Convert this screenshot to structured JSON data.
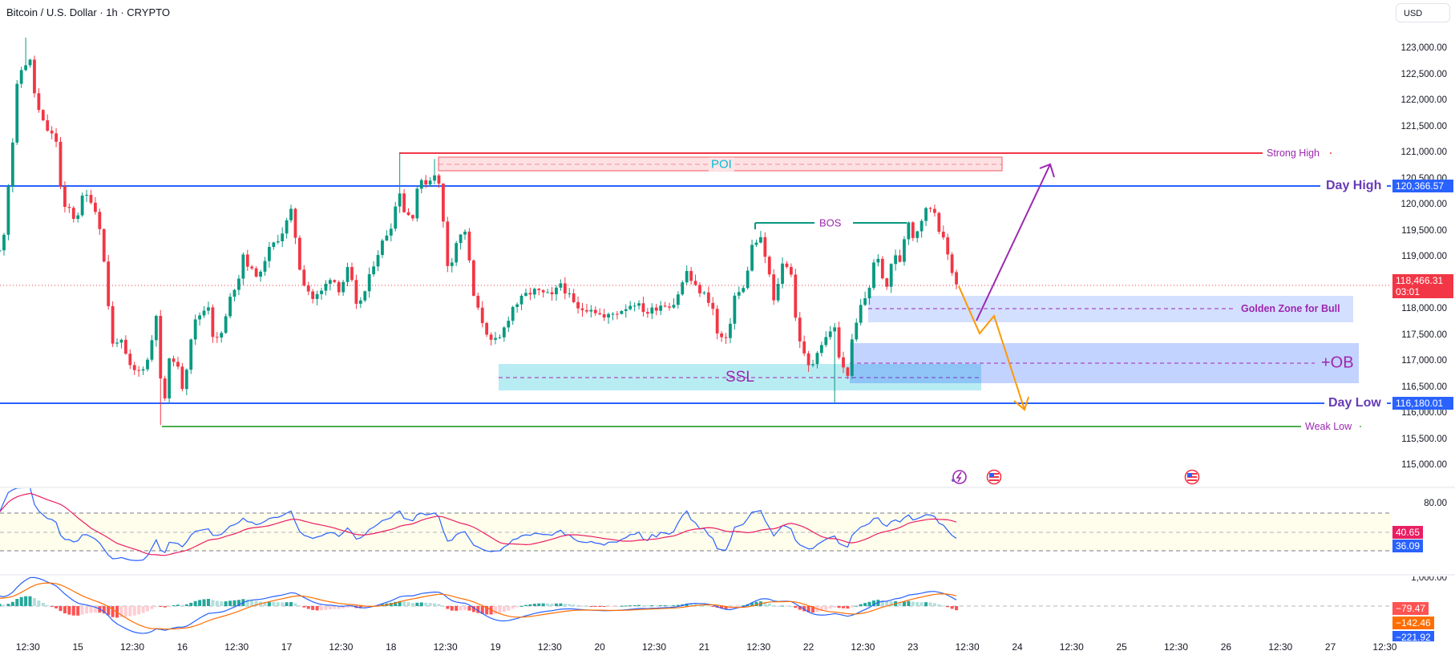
{
  "header": {
    "title": "Bitcoin / U.S. Dollar · 1h · CRYPTO",
    "currency_button": "USD"
  },
  "annotations": {
    "poi": "POI",
    "bos": "BOS",
    "ssl": "SSL",
    "ob": "+OB",
    "golden_zone": "Golden Zone for Bull",
    "strong_high": "Strong High",
    "day_high": "Day High",
    "day_low": "Day Low",
    "weak_low": "Weak Low"
  },
  "price_tags": {
    "day_high": "120,366.57",
    "last_price": "118,466.31",
    "countdown": "03:01",
    "day_low": "116,180.01"
  },
  "colors": {
    "up": "#089981",
    "down": "#f23645",
    "day_level": "#2962ff",
    "strong_high": "#f23645",
    "weak_low": "#4caf50",
    "label": "#9c27b0"
  },
  "chart_data": {
    "type": "candlestick",
    "title": "Bitcoin / U.S. Dollar · 1h · CRYPTO",
    "x_unit": "hours since Jul 14 00:00",
    "price_axis": {
      "labels": [
        "123,000.00",
        "122,500.00",
        "122,000.00",
        "121,500.00",
        "121,000.00",
        "120,500.00",
        "120,000.00",
        "119,500.00",
        "119,000.00",
        "118,000.00",
        "117,500.00",
        "117,000.00",
        "116,500.00",
        "116,000.00",
        "115,500.00",
        "115,000.00"
      ],
      "range": [
        114700,
        123900
      ]
    },
    "time_axis": [
      {
        "label": "12:30",
        "h": 12.5
      },
      {
        "label": "15",
        "h": 24
      },
      {
        "label": "12:30",
        "h": 36.5
      },
      {
        "label": "16",
        "h": 48
      },
      {
        "label": "12:30",
        "h": 60.5
      },
      {
        "label": "17",
        "h": 72
      },
      {
        "label": "12:30",
        "h": 84.5
      },
      {
        "label": "18",
        "h": 96
      },
      {
        "label": "12:30",
        "h": 108.5
      },
      {
        "label": "19",
        "h": 120
      },
      {
        "label": "12:30",
        "h": 132.5
      },
      {
        "label": "20",
        "h": 144
      },
      {
        "label": "12:30",
        "h": 156.5
      },
      {
        "label": "21",
        "h": 168
      },
      {
        "label": "12:30",
        "h": 180.5
      },
      {
        "label": "22",
        "h": 192
      },
      {
        "label": "12:30",
        "h": 204.5
      },
      {
        "label": "23",
        "h": 216
      },
      {
        "label": "12:30",
        "h": 228.5
      },
      {
        "label": "24",
        "h": 240
      },
      {
        "label": "12:30",
        "h": 252.5
      },
      {
        "label": "25",
        "h": 264
      },
      {
        "label": "12:30",
        "h": 276.5
      },
      {
        "label": "26",
        "h": 288
      },
      {
        "label": "12:30",
        "h": 300.5
      },
      {
        "label": "27",
        "h": 312
      },
      {
        "label": "12:30",
        "h": 324.5
      }
    ],
    "close_path": [
      [
        6.4,
        119100
      ],
      [
        7.3,
        119660
      ],
      [
        8.4,
        120800
      ],
      [
        9.3,
        121415
      ],
      [
        10.2,
        122490
      ],
      [
        12.3,
        122740
      ],
      [
        13.3,
        122740
      ],
      [
        14.2,
        121970
      ],
      [
        16.3,
        121500
      ],
      [
        19.2,
        121200
      ],
      [
        20.4,
        119890
      ],
      [
        22.3,
        119920
      ],
      [
        23.4,
        119660
      ],
      [
        25.3,
        120200
      ],
      [
        27.3,
        120080
      ],
      [
        29.3,
        119500
      ],
      [
        30.5,
        118460
      ],
      [
        32.2,
        117150
      ],
      [
        33.3,
        117500
      ],
      [
        35.2,
        117050
      ],
      [
        36.3,
        116800
      ],
      [
        38.2,
        116800
      ],
      [
        40.3,
        117050
      ],
      [
        42.3,
        118080
      ],
      [
        43.3,
        115970
      ],
      [
        44.2,
        116380
      ],
      [
        45.3,
        117200
      ],
      [
        47.4,
        116740
      ],
      [
        48.2,
        116430
      ],
      [
        50.2,
        117570
      ],
      [
        51.3,
        117820
      ],
      [
        54.1,
        118080
      ],
      [
        55.3,
        117310
      ],
      [
        57.3,
        117570
      ],
      [
        59.1,
        118230
      ],
      [
        61.2,
        118660
      ],
      [
        62.2,
        119150
      ],
      [
        63.3,
        118740
      ],
      [
        66.1,
        118640
      ],
      [
        67.2,
        119040
      ],
      [
        69.3,
        119270
      ],
      [
        71.1,
        119490
      ],
      [
        73.2,
        119890
      ],
      [
        74.2,
        119260
      ],
      [
        75.3,
        118610
      ],
      [
        78.1,
        118180
      ],
      [
        80.2,
        118340
      ],
      [
        82.2,
        118640
      ],
      [
        84.2,
        118350
      ],
      [
        86.3,
        118810
      ],
      [
        88,
        118030
      ],
      [
        90.1,
        118340
      ],
      [
        92.1,
        118900
      ],
      [
        94.2,
        119310
      ],
      [
        96.1,
        119620
      ],
      [
        97.9,
        120300
      ],
      [
        99.2,
        119800
      ],
      [
        101.1,
        119800
      ],
      [
        102.1,
        120380
      ],
      [
        104.9,
        120460
      ],
      [
        106.2,
        120640
      ],
      [
        107.2,
        120300
      ],
      [
        108.3,
        119410
      ],
      [
        109.2,
        118690
      ],
      [
        111.1,
        119310
      ],
      [
        113.1,
        119510
      ],
      [
        114.1,
        118810
      ],
      [
        115.1,
        118180
      ],
      [
        116.2,
        117920
      ],
      [
        119,
        117350
      ],
      [
        120.9,
        117400
      ],
      [
        124,
        118030
      ],
      [
        127,
        118260
      ],
      [
        128.9,
        118340
      ],
      [
        133.1,
        118230
      ],
      [
        135,
        118490
      ],
      [
        138.9,
        117970
      ],
      [
        141.9,
        118030
      ],
      [
        145,
        117820
      ],
      [
        148.8,
        117970
      ],
      [
        151.9,
        118120
      ],
      [
        154.9,
        117920
      ],
      [
        158,
        118080
      ],
      [
        160.9,
        118080
      ],
      [
        163,
        118490
      ],
      [
        163.9,
        118740
      ],
      [
        165.6,
        118430
      ],
      [
        167.9,
        118280
      ],
      [
        169.8,
        118080
      ],
      [
        171,
        117510
      ],
      [
        173.3,
        117350
      ],
      [
        174.8,
        118230
      ],
      [
        177.1,
        118380
      ],
      [
        179,
        119200
      ],
      [
        180.9,
        119350
      ],
      [
        182.8,
        118740
      ],
      [
        184,
        118120
      ],
      [
        185.9,
        118850
      ],
      [
        187.8,
        118850
      ],
      [
        189,
        117820
      ],
      [
        190.5,
        117200
      ],
      [
        192.4,
        116800
      ],
      [
        193.9,
        117200
      ],
      [
        195.9,
        117420
      ],
      [
        197.8,
        117720
      ],
      [
        198.9,
        117100
      ],
      [
        200.8,
        116650
      ],
      [
        202,
        117350
      ],
      [
        203.9,
        118030
      ],
      [
        205.8,
        118340
      ],
      [
        207.7,
        119150
      ],
      [
        209.6,
        118230
      ],
      [
        211.5,
        119110
      ],
      [
        212.7,
        118800
      ],
      [
        213.8,
        119260
      ],
      [
        214.8,
        119770
      ],
      [
        216.1,
        119350
      ],
      [
        218.8,
        119880
      ],
      [
        220.7,
        119970
      ],
      [
        221.9,
        119570
      ],
      [
        223.8,
        119110
      ],
      [
        224.9,
        118690
      ],
      [
        225.7,
        119000
      ],
      [
        226.7,
        118466.31
      ]
    ],
    "wick_extremes": [
      [
        12,
        123200,
        null
      ],
      [
        43,
        null,
        115770
      ],
      [
        98,
        121000,
        null
      ],
      [
        106,
        120870,
        null
      ],
      [
        198,
        null,
        116180
      ]
    ],
    "levels": {
      "strong_high": 121000,
      "day_high": 120366.57,
      "last": 118466.31,
      "day_low": 116180.01,
      "weak_low": 115770
    },
    "zones": {
      "poi": [
        120720,
        120980
      ],
      "golden_zone": [
        117770,
        118280
      ],
      "ob": [
        116620,
        117380
      ],
      "ssl": [
        116500,
        117010
      ]
    },
    "rsi": {
      "axis_label": "80.00",
      "levels": [
        70,
        50,
        30
      ],
      "rsi_value": "36.09",
      "ma_value": "40.65"
    },
    "macd": {
      "axis_label": "1,000.00",
      "histogram_value": "−79.47",
      "signal_value": "−142.46",
      "macd_value": "−221.92"
    }
  }
}
